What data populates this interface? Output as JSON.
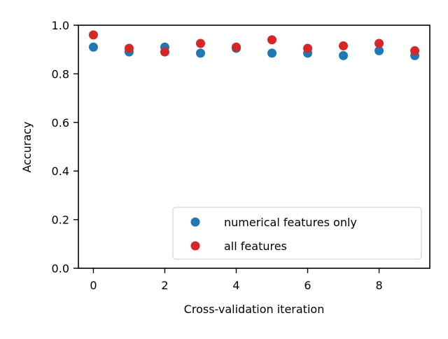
{
  "chart_data": {
    "type": "scatter",
    "title": "",
    "xlabel": "Cross-validation iteration",
    "ylabel": "Accuracy",
    "xlim": [
      -0.42,
      9.42
    ],
    "ylim": [
      0.0,
      1.0
    ],
    "xticks": [
      0,
      2,
      4,
      6,
      8
    ],
    "xtick_labels": [
      "0",
      "2",
      "4",
      "6",
      "8"
    ],
    "yticks": [
      0.0,
      0.2,
      0.4,
      0.6,
      0.8,
      1.0
    ],
    "ytick_labels": [
      "0.0",
      "0.2",
      "0.4",
      "0.6",
      "0.8",
      "1.0"
    ],
    "grid": false,
    "legend_position": "lower-right",
    "x": [
      0,
      1,
      2,
      3,
      4,
      5,
      6,
      7,
      8,
      9
    ],
    "series": [
      {
        "name": "numerical features only",
        "color": "#1f77b4",
        "values": [
          0.91,
          0.89,
          0.91,
          0.885,
          0.905,
          0.885,
          0.885,
          0.875,
          0.895,
          0.875
        ]
      },
      {
        "name": "all features",
        "color": "#d62728",
        "values": [
          0.96,
          0.905,
          0.89,
          0.925,
          0.91,
          0.94,
          0.905,
          0.915,
          0.925,
          0.895
        ]
      }
    ]
  }
}
